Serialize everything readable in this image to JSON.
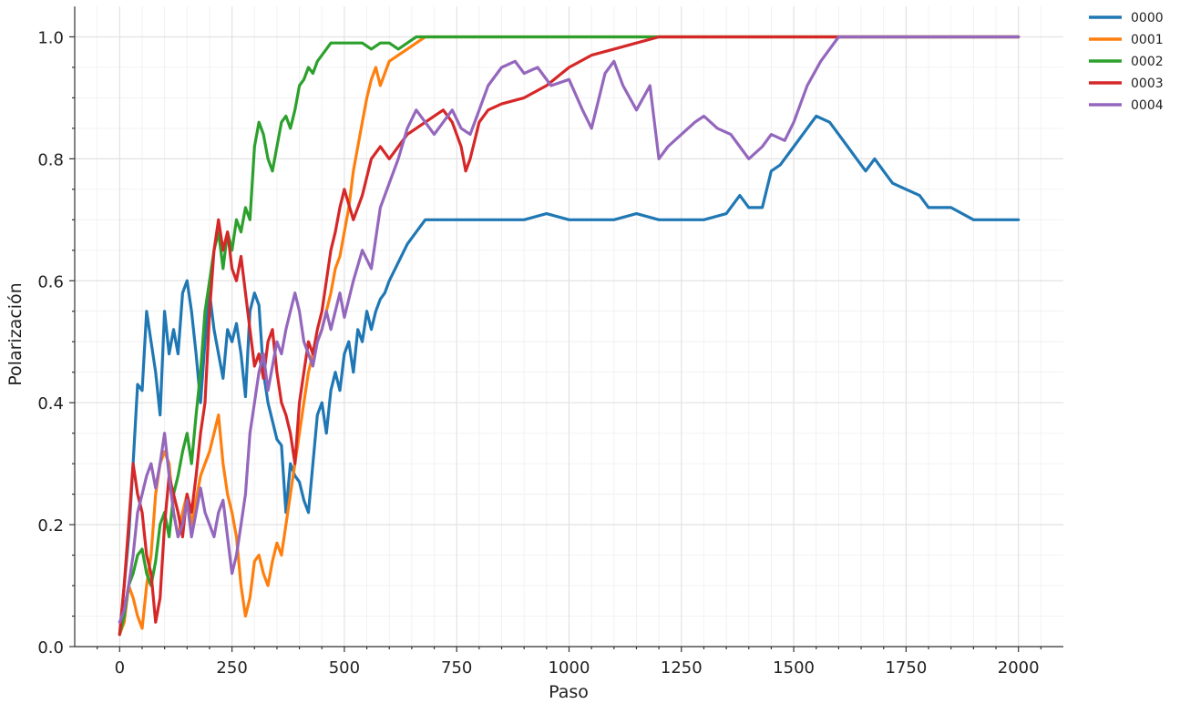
{
  "chart_data": {
    "type": "line",
    "xlabel": "Paso",
    "ylabel": "Polarización",
    "xlim": [
      -100,
      2100
    ],
    "ylim": [
      0.0,
      1.05
    ],
    "xticks": [
      0,
      250,
      500,
      750,
      1000,
      1250,
      1500,
      1750,
      2000
    ],
    "yticks": [
      0.0,
      0.2,
      0.4,
      0.6,
      0.8,
      1.0
    ],
    "xtick_labels": [
      "0",
      "250",
      "500",
      "750",
      "1000",
      "1250",
      "1500",
      "1750",
      "2000"
    ],
    "ytick_labels": [
      "0.0",
      "0.2",
      "0.4",
      "0.6",
      "0.8",
      "1.0"
    ],
    "grid": true,
    "legend_position": "outside-top-right",
    "series": [
      {
        "name": "0000",
        "color": "#1f77b4",
        "x": [
          0,
          10,
          20,
          30,
          40,
          50,
          60,
          70,
          80,
          90,
          100,
          110,
          120,
          130,
          140,
          150,
          160,
          170,
          180,
          190,
          200,
          210,
          220,
          230,
          240,
          250,
          260,
          270,
          280,
          290,
          300,
          310,
          320,
          330,
          340,
          350,
          360,
          370,
          380,
          390,
          400,
          410,
          420,
          430,
          440,
          450,
          460,
          470,
          480,
          490,
          500,
          510,
          520,
          530,
          540,
          550,
          560,
          570,
          580,
          590,
          600,
          620,
          640,
          660,
          680,
          700,
          750,
          800,
          850,
          900,
          950,
          1000,
          1050,
          1100,
          1150,
          1200,
          1250,
          1300,
          1350,
          1380,
          1400,
          1430,
          1450,
          1470,
          1500,
          1530,
          1550,
          1580,
          1600,
          1620,
          1640,
          1660,
          1680,
          1700,
          1720,
          1750,
          1780,
          1800,
          1850,
          1900,
          1950,
          2000
        ],
        "values": [
          0.02,
          0.1,
          0.18,
          0.3,
          0.43,
          0.42,
          0.55,
          0.5,
          0.45,
          0.38,
          0.55,
          0.48,
          0.52,
          0.48,
          0.58,
          0.6,
          0.55,
          0.48,
          0.4,
          0.5,
          0.58,
          0.52,
          0.48,
          0.44,
          0.52,
          0.5,
          0.53,
          0.48,
          0.41,
          0.55,
          0.58,
          0.56,
          0.45,
          0.4,
          0.37,
          0.34,
          0.33,
          0.22,
          0.3,
          0.28,
          0.27,
          0.24,
          0.22,
          0.3,
          0.38,
          0.4,
          0.35,
          0.42,
          0.45,
          0.42,
          0.48,
          0.5,
          0.45,
          0.52,
          0.5,
          0.55,
          0.52,
          0.55,
          0.57,
          0.58,
          0.6,
          0.63,
          0.66,
          0.68,
          0.7,
          0.7,
          0.7,
          0.7,
          0.7,
          0.7,
          0.71,
          0.7,
          0.7,
          0.7,
          0.71,
          0.7,
          0.7,
          0.7,
          0.71,
          0.74,
          0.72,
          0.72,
          0.78,
          0.79,
          0.82,
          0.85,
          0.87,
          0.86,
          0.84,
          0.82,
          0.8,
          0.78,
          0.8,
          0.78,
          0.76,
          0.75,
          0.74,
          0.72,
          0.72,
          0.7,
          0.7,
          0.7
        ]
      },
      {
        "name": "0001",
        "color": "#ff7f0e",
        "x": [
          0,
          10,
          20,
          30,
          40,
          50,
          60,
          70,
          80,
          90,
          100,
          110,
          120,
          130,
          140,
          150,
          160,
          170,
          180,
          190,
          200,
          210,
          220,
          230,
          240,
          250,
          260,
          270,
          280,
          290,
          300,
          310,
          320,
          330,
          340,
          350,
          360,
          370,
          380,
          390,
          400,
          410,
          420,
          430,
          440,
          450,
          460,
          470,
          480,
          490,
          500,
          510,
          520,
          530,
          540,
          550,
          560,
          570,
          580,
          590,
          600,
          620,
          640,
          660,
          680,
          700,
          750,
          800,
          1000,
          1200,
          1500,
          1700,
          2000
        ],
        "values": [
          0.02,
          0.04,
          0.1,
          0.08,
          0.05,
          0.03,
          0.1,
          0.15,
          0.25,
          0.3,
          0.32,
          0.3,
          0.22,
          0.18,
          0.22,
          0.25,
          0.2,
          0.24,
          0.28,
          0.3,
          0.32,
          0.35,
          0.38,
          0.3,
          0.25,
          0.22,
          0.18,
          0.1,
          0.05,
          0.08,
          0.14,
          0.15,
          0.12,
          0.1,
          0.14,
          0.17,
          0.15,
          0.2,
          0.25,
          0.3,
          0.35,
          0.4,
          0.45,
          0.48,
          0.5,
          0.52,
          0.55,
          0.58,
          0.62,
          0.64,
          0.68,
          0.72,
          0.78,
          0.82,
          0.86,
          0.9,
          0.93,
          0.95,
          0.92,
          0.94,
          0.96,
          0.97,
          0.98,
          0.99,
          1.0,
          1.0,
          1.0,
          1.0,
          1.0,
          1.0,
          1.0,
          1.0,
          1.0
        ]
      },
      {
        "name": "0002",
        "color": "#2ca02c",
        "x": [
          0,
          10,
          20,
          30,
          40,
          50,
          60,
          70,
          80,
          90,
          100,
          110,
          120,
          130,
          140,
          150,
          160,
          170,
          180,
          190,
          200,
          210,
          220,
          230,
          240,
          250,
          260,
          270,
          280,
          290,
          300,
          310,
          320,
          330,
          340,
          350,
          360,
          370,
          380,
          390,
          400,
          410,
          420,
          430,
          440,
          450,
          460,
          470,
          480,
          490,
          500,
          520,
          540,
          560,
          580,
          600,
          620,
          640,
          660,
          680,
          700,
          800,
          1000,
          1200,
          1500,
          1700,
          2000
        ],
        "values": [
          0.02,
          0.05,
          0.1,
          0.12,
          0.15,
          0.16,
          0.12,
          0.1,
          0.14,
          0.2,
          0.22,
          0.18,
          0.25,
          0.28,
          0.32,
          0.35,
          0.3,
          0.38,
          0.45,
          0.55,
          0.6,
          0.65,
          0.68,
          0.62,
          0.68,
          0.65,
          0.7,
          0.68,
          0.72,
          0.7,
          0.82,
          0.86,
          0.84,
          0.8,
          0.78,
          0.82,
          0.86,
          0.87,
          0.85,
          0.88,
          0.92,
          0.93,
          0.95,
          0.94,
          0.96,
          0.97,
          0.98,
          0.99,
          0.99,
          0.99,
          0.99,
          0.99,
          0.99,
          0.98,
          0.99,
          0.99,
          0.98,
          0.99,
          1.0,
          1.0,
          1.0,
          1.0,
          1.0,
          1.0,
          1.0,
          1.0,
          1.0
        ]
      },
      {
        "name": "0003",
        "color": "#d62728",
        "x": [
          0,
          10,
          20,
          30,
          40,
          50,
          60,
          70,
          80,
          90,
          100,
          110,
          120,
          130,
          140,
          150,
          160,
          170,
          180,
          190,
          200,
          210,
          220,
          230,
          240,
          250,
          260,
          270,
          280,
          290,
          300,
          310,
          320,
          330,
          340,
          350,
          360,
          370,
          380,
          390,
          400,
          410,
          420,
          430,
          440,
          450,
          460,
          470,
          480,
          490,
          500,
          520,
          540,
          560,
          580,
          600,
          620,
          640,
          660,
          680,
          700,
          720,
          740,
          760,
          770,
          780,
          800,
          820,
          850,
          900,
          950,
          1000,
          1050,
          1100,
          1150,
          1200,
          1300,
          1400,
          1500,
          1700,
          2000
        ],
        "values": [
          0.02,
          0.1,
          0.2,
          0.3,
          0.25,
          0.22,
          0.15,
          0.12,
          0.04,
          0.08,
          0.2,
          0.28,
          0.25,
          0.22,
          0.18,
          0.25,
          0.22,
          0.28,
          0.35,
          0.4,
          0.55,
          0.65,
          0.7,
          0.65,
          0.68,
          0.62,
          0.6,
          0.64,
          0.58,
          0.52,
          0.46,
          0.48,
          0.44,
          0.5,
          0.52,
          0.45,
          0.4,
          0.38,
          0.35,
          0.3,
          0.4,
          0.45,
          0.5,
          0.48,
          0.52,
          0.55,
          0.6,
          0.65,
          0.68,
          0.72,
          0.75,
          0.7,
          0.74,
          0.8,
          0.82,
          0.8,
          0.82,
          0.84,
          0.85,
          0.86,
          0.87,
          0.88,
          0.86,
          0.82,
          0.78,
          0.8,
          0.86,
          0.88,
          0.89,
          0.9,
          0.92,
          0.95,
          0.97,
          0.98,
          0.99,
          1.0,
          1.0,
          1.0,
          1.0,
          1.0,
          1.0
        ]
      },
      {
        "name": "0004",
        "color": "#9467bd",
        "x": [
          0,
          10,
          20,
          30,
          40,
          50,
          60,
          70,
          80,
          90,
          100,
          110,
          120,
          130,
          140,
          150,
          160,
          170,
          180,
          190,
          200,
          210,
          220,
          230,
          240,
          250,
          260,
          270,
          280,
          290,
          300,
          310,
          320,
          330,
          340,
          350,
          360,
          370,
          380,
          390,
          400,
          410,
          420,
          430,
          440,
          450,
          460,
          470,
          480,
          490,
          500,
          520,
          540,
          560,
          580,
          600,
          620,
          640,
          660,
          680,
          700,
          720,
          740,
          760,
          780,
          800,
          820,
          850,
          880,
          900,
          930,
          960,
          1000,
          1030,
          1050,
          1080,
          1100,
          1120,
          1150,
          1180,
          1200,
          1220,
          1250,
          1280,
          1300,
          1330,
          1360,
          1380,
          1400,
          1430,
          1450,
          1480,
          1500,
          1530,
          1560,
          1580,
          1600,
          1620,
          1700,
          2000
        ],
        "values": [
          0.04,
          0.06,
          0.1,
          0.15,
          0.22,
          0.25,
          0.28,
          0.3,
          0.26,
          0.3,
          0.35,
          0.28,
          0.22,
          0.18,
          0.2,
          0.24,
          0.18,
          0.22,
          0.26,
          0.22,
          0.2,
          0.18,
          0.22,
          0.24,
          0.18,
          0.12,
          0.15,
          0.2,
          0.25,
          0.35,
          0.4,
          0.45,
          0.48,
          0.42,
          0.46,
          0.5,
          0.48,
          0.52,
          0.55,
          0.58,
          0.55,
          0.5,
          0.48,
          0.46,
          0.5,
          0.52,
          0.55,
          0.52,
          0.55,
          0.58,
          0.54,
          0.6,
          0.65,
          0.62,
          0.72,
          0.76,
          0.8,
          0.85,
          0.88,
          0.86,
          0.84,
          0.86,
          0.88,
          0.85,
          0.84,
          0.88,
          0.92,
          0.95,
          0.96,
          0.94,
          0.95,
          0.92,
          0.93,
          0.88,
          0.85,
          0.94,
          0.96,
          0.92,
          0.88,
          0.92,
          0.8,
          0.82,
          0.84,
          0.86,
          0.87,
          0.85,
          0.84,
          0.82,
          0.8,
          0.82,
          0.84,
          0.83,
          0.86,
          0.92,
          0.96,
          0.98,
          1.0,
          1.0,
          1.0,
          1.0
        ]
      }
    ]
  }
}
